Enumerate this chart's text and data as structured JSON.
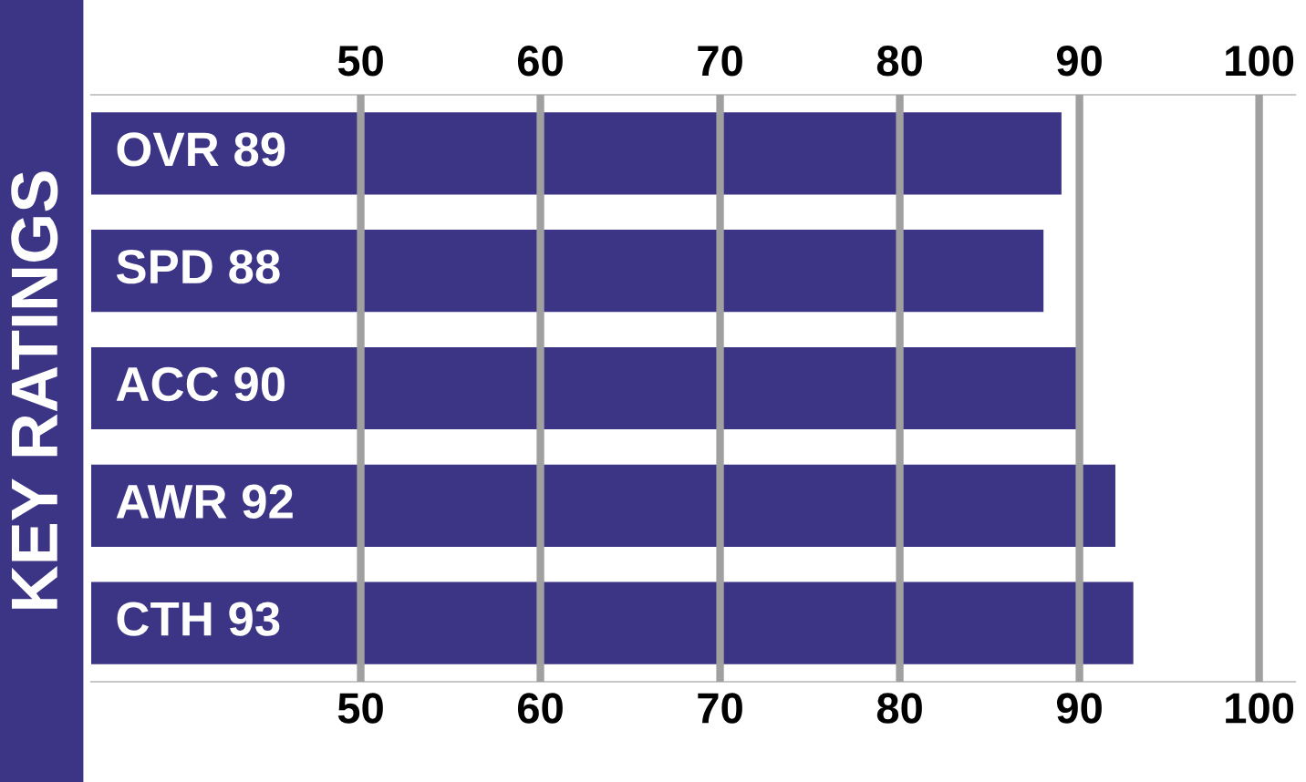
{
  "chart_data": {
    "type": "bar",
    "orientation": "horizontal",
    "title": "KEY RATINGS",
    "categories": [
      "OVR 89",
      "SPD 88",
      "ACC 90",
      "AWR 92",
      "CTH 93"
    ],
    "values": [
      89,
      88,
      90,
      92,
      93
    ],
    "color": "#3c3585",
    "xlim": [
      35,
      102
    ],
    "xticks": [
      50,
      60,
      70,
      80,
      90,
      100
    ],
    "x2lim": [
      35,
      102
    ],
    "x2ticks": [
      50,
      60,
      70,
      80,
      90,
      100
    ],
    "grid": "x"
  }
}
